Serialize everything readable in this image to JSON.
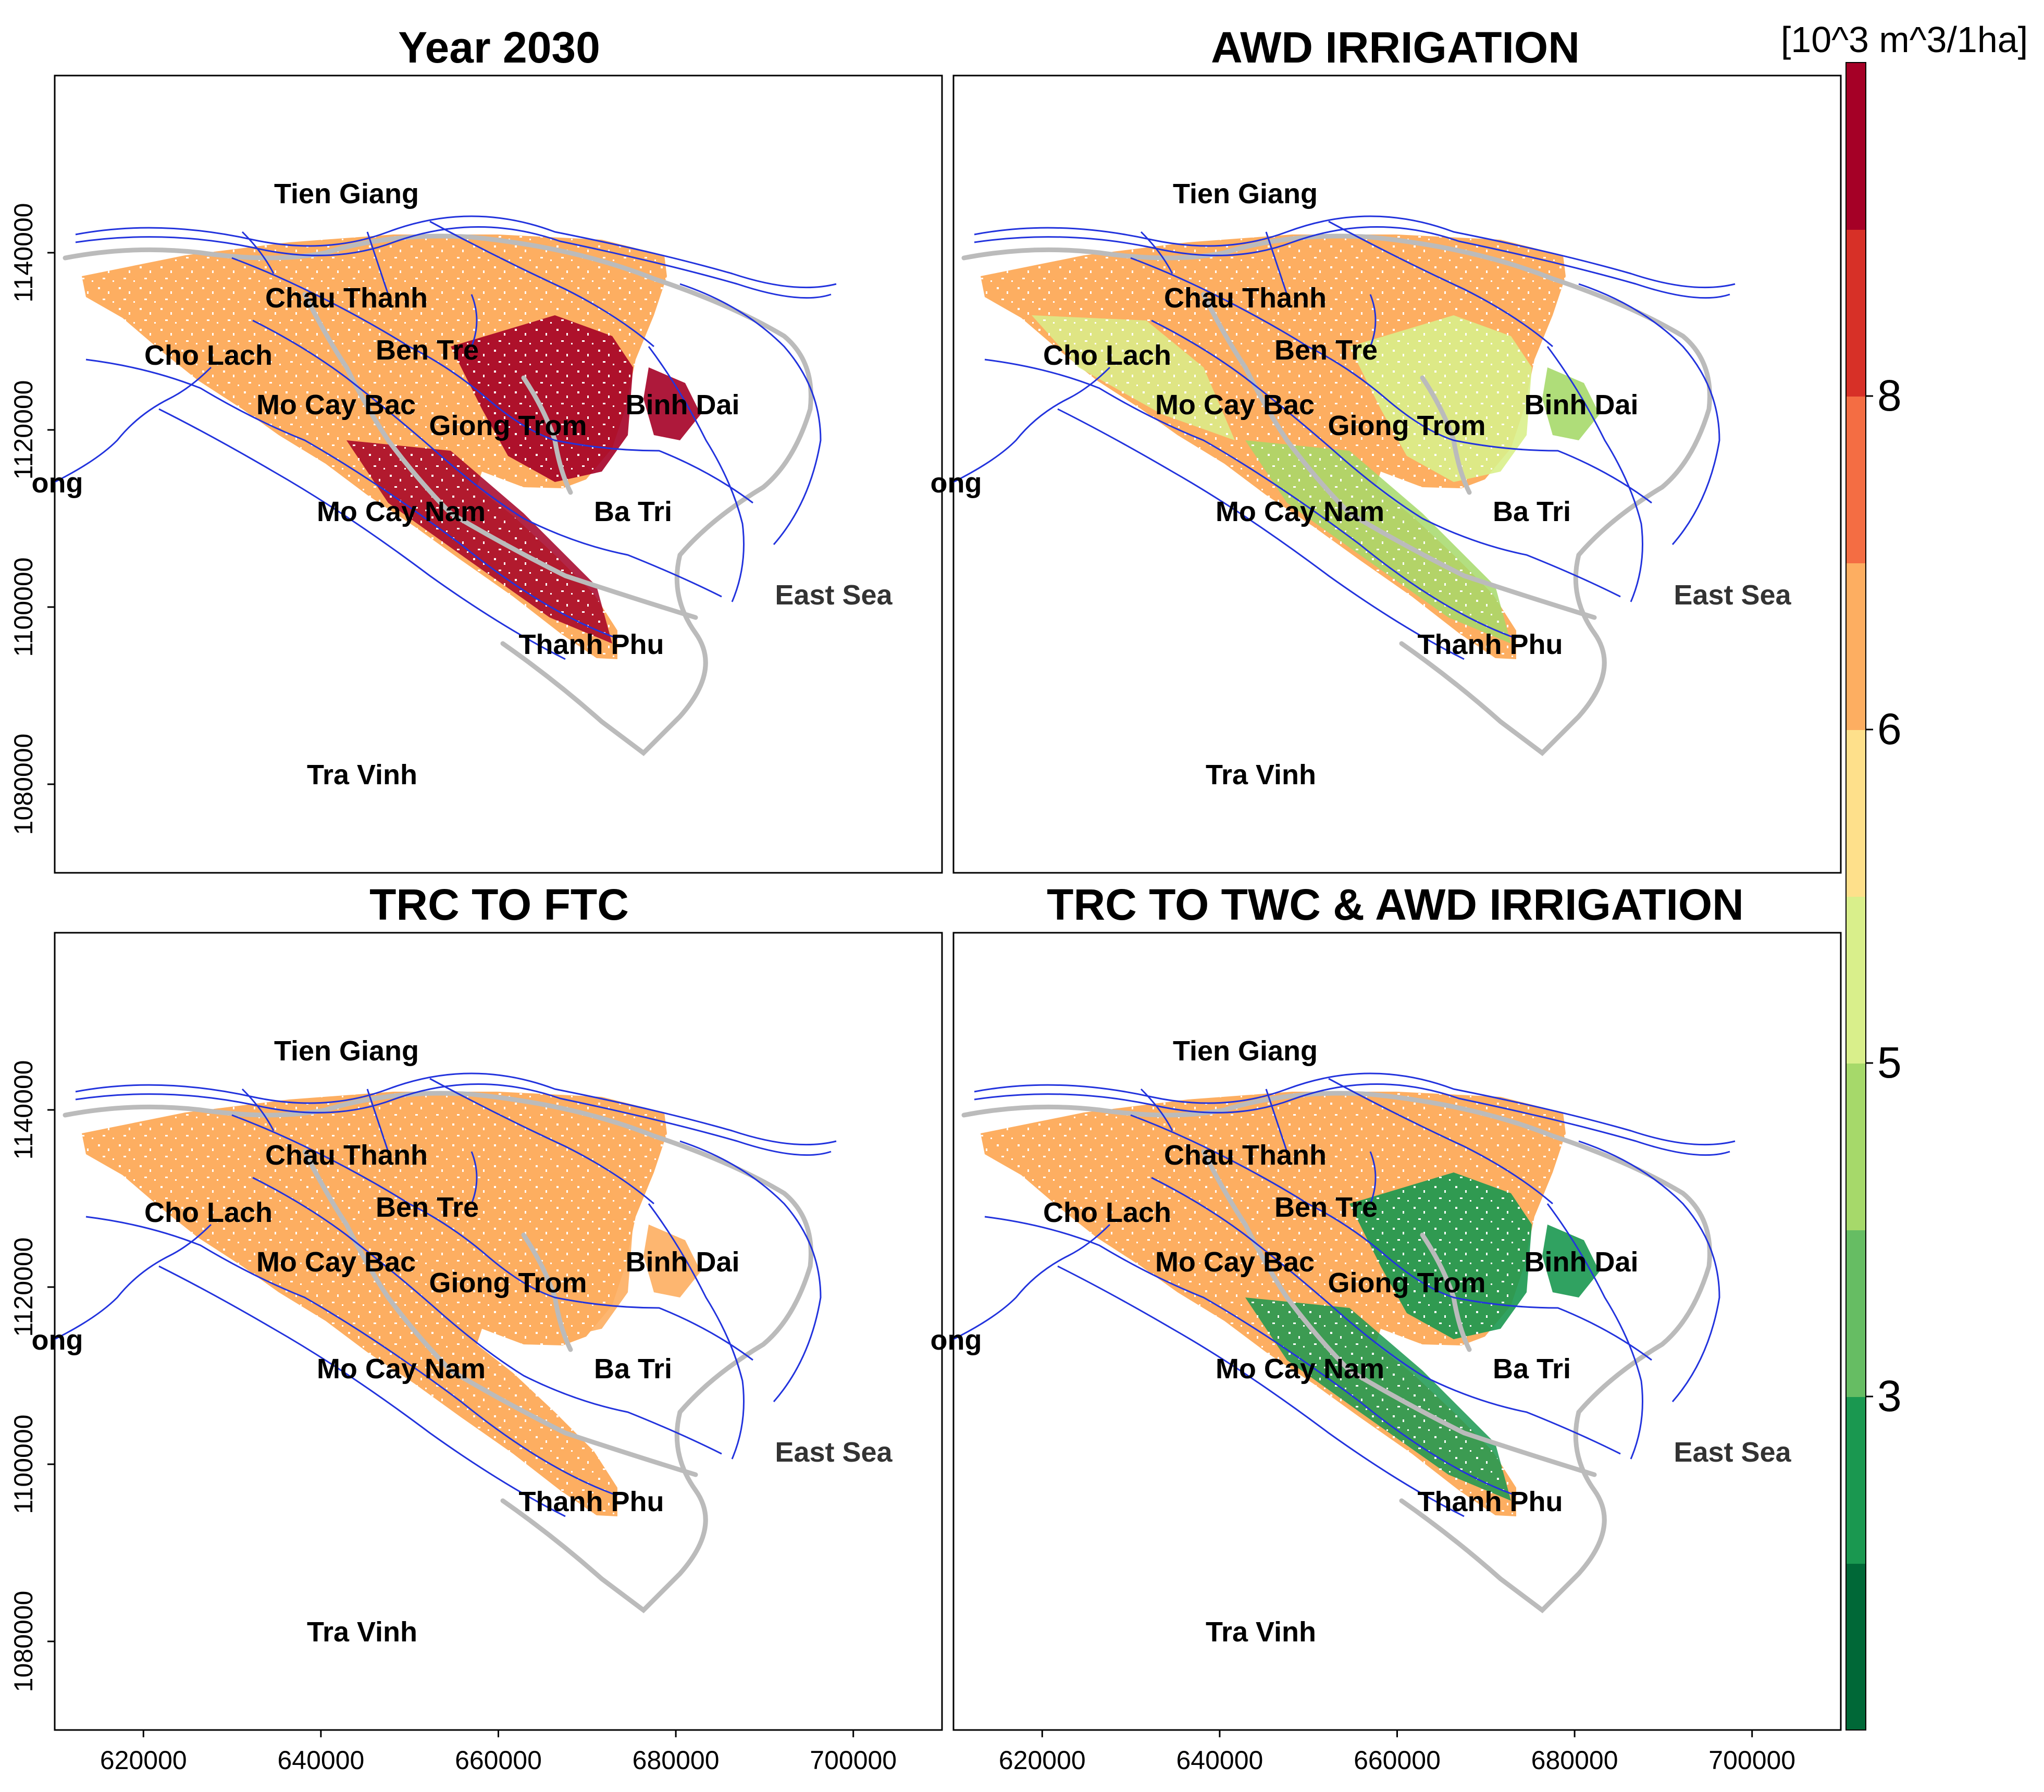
{
  "colors": {
    "orange": "#FDAE61",
    "darkred": "#A50026",
    "lightgreen": "#D9EF8B",
    "green": "#1A9850",
    "river": "#2233DD",
    "road": "#BBBBBB",
    "frame": "#000000"
  },
  "panels": [
    {
      "title": "Year 2030",
      "fill_palette": [
        "#FDAE61",
        "#FDAE61",
        "#FDAE61",
        "#A50026"
      ],
      "hot_zone": "#A50026",
      "east_zone": "#A50026"
    },
    {
      "title": "AWD IRRIGATION",
      "fill_palette": [
        "#FDAE61",
        "#FDAE61",
        "#D9EF8B",
        "#A6D96A"
      ],
      "hot_zone": "#D9EF8B",
      "east_zone": "#A6D96A"
    },
    {
      "title": "TRC TO FTC",
      "fill_palette": [
        "#FDAE61",
        "#FDAE61",
        "#FDAE61",
        "#FDAE61"
      ],
      "hot_zone": "#FDAE61",
      "east_zone": "#FDAE61"
    },
    {
      "title": "TRC TO TWC & AWD IRRIGATION",
      "fill_palette": [
        "#FDAE61",
        "#FDAE61",
        "#FDAE61",
        "#1A9850"
      ],
      "hot_zone": "#1A9850",
      "east_zone": "#1A9850"
    }
  ],
  "places": [
    "Tien Giang",
    "Chau Thanh",
    "Ben Tre",
    "Cho Lach",
    "Mo Cay Bac",
    "Giong Trom",
    "Binh Dai",
    "Mo Cay Nam",
    "Ba Tri",
    "Thanh Phu",
    "Tra Vinh",
    "East Sea",
    "Long"
  ],
  "axes": {
    "x_ticks": [
      "620000",
      "640000",
      "660000",
      "680000",
      "700000"
    ],
    "y_ticks": [
      "1140000",
      "1120000",
      "1100000",
      "1080000"
    ],
    "x_range": [
      610000,
      710000
    ],
    "y_range": [
      1070000,
      1160000
    ]
  },
  "colorbar": {
    "unit": "[10^3 m^3/1ha]",
    "tick_labels": [
      "8",
      "6",
      "5",
      "3"
    ],
    "segments": [
      "#006837",
      "#1A9850",
      "#66BD63",
      "#A6D96A",
      "#D9EF8B",
      "#FEE08B",
      "#FDAE61",
      "#F46D43",
      "#D73027",
      "#A50026"
    ]
  }
}
